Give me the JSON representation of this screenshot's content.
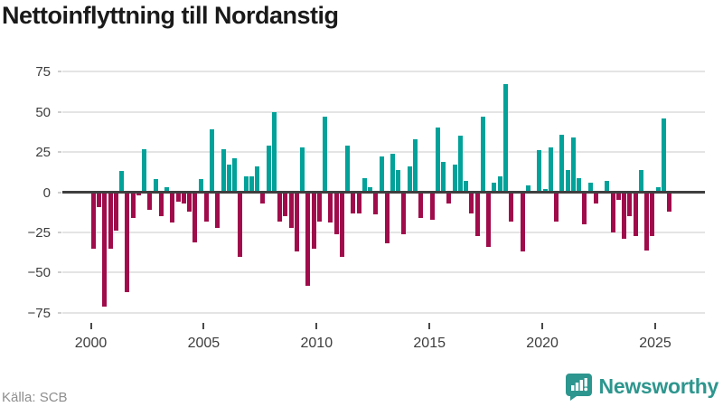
{
  "title": "Nettoinflyttning till Nordanstig",
  "source": "Källa: SCB",
  "logo": {
    "brand": "Newsworthy"
  },
  "colors": {
    "positive": "#00a29a",
    "negative": "#a00c4b",
    "logo_teal": "#2d968e",
    "zero_line": "#3f3f3f",
    "gridline": "#e4e4e4"
  },
  "y_axis": {
    "ticks": [
      75,
      50,
      25,
      0,
      -25,
      -50,
      -75
    ]
  },
  "x_axis": {
    "tick_years": [
      2000,
      2005,
      2010,
      2015,
      2020,
      2025
    ]
  },
  "chart_data": {
    "type": "bar",
    "title": "Nettoinflyttning till Nordanstig",
    "frequency": "quarterly",
    "x_start_year": 2000,
    "x_start_quarter": 1,
    "ylim": [
      -75,
      75
    ],
    "grid": "horizontal",
    "legend": "none",
    "series": [
      {
        "name": "Nettoinflyttning",
        "values": [
          -35,
          -9,
          -71,
          -35,
          -24,
          13,
          -62,
          -16,
          -2,
          27,
          -11,
          8,
          -15,
          3,
          -19,
          -6,
          -7,
          -12,
          -31,
          8,
          -18,
          39,
          -22,
          27,
          17,
          21,
          -40,
          10,
          10,
          16,
          -7,
          29,
          50,
          -18,
          -15,
          -22,
          -37,
          28,
          -58,
          -35,
          -18,
          47,
          -19,
          -26,
          -40,
          29,
          -13,
          -13,
          9,
          3,
          -14,
          22,
          -32,
          24,
          14,
          -26,
          16,
          33,
          -16,
          0,
          -17,
          40,
          19,
          -7,
          17,
          35,
          7,
          -13,
          -27,
          47,
          -34,
          6,
          10,
          67,
          -18,
          0,
          -37,
          4,
          -1,
          26,
          2,
          28,
          -18,
          36,
          14,
          34,
          9,
          -20,
          6,
          -7,
          0,
          7,
          -25,
          -5,
          -29,
          -15,
          -27,
          14,
          -36,
          -27,
          3,
          46,
          -12
        ]
      }
    ],
    "xlabel": "",
    "ylabel": ""
  }
}
